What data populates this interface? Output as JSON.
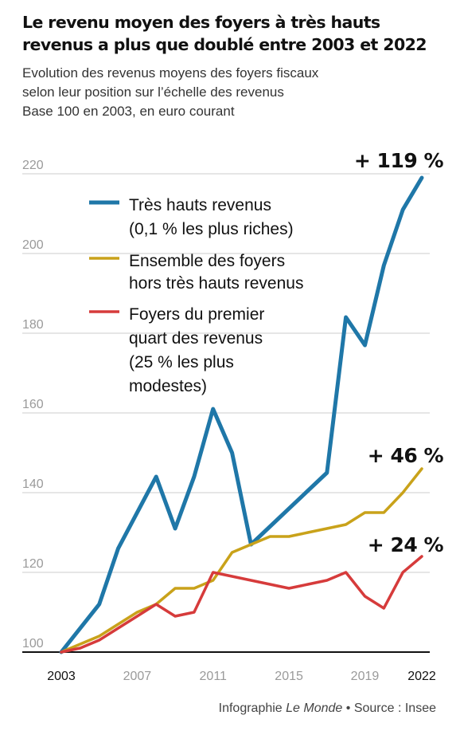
{
  "header": {
    "title": "Le revenu moyen des foyers à très hauts revenus a plus que doublé entre 2003 et 2022",
    "subtitle_lines": [
      "Evolution des revenus moyens des foyers fiscaux",
      "selon leur position sur l’échelle des revenus",
      "Base 100 en 2003, en euro courant"
    ]
  },
  "footer": {
    "prefix": "Infographie ",
    "publication": "Le Monde",
    "separator": " • ",
    "source": "Source : Insee"
  },
  "colors": {
    "very_high": "#1f77a8",
    "overall": "#c9a21a",
    "low": "#d63b3b",
    "grid": "#cccccc",
    "axis": "#111111"
  },
  "chart_data": {
    "type": "line",
    "ylim": [
      100,
      220
    ],
    "yticks": [
      100,
      120,
      140,
      160,
      180,
      200,
      220
    ],
    "xticks": [
      2003,
      2007,
      2011,
      2015,
      2019,
      2022
    ],
    "x_bold_ticks": [
      2003,
      2022
    ],
    "grid": true,
    "legend_position": "top-left",
    "series": [
      {
        "key": "very_high",
        "name_lines": [
          "Très hauts revenus",
          "(0,1 % les plus riches)"
        ],
        "end_label": "+ 119 %",
        "x": [
          2003,
          2005,
          2006,
          2008,
          2009,
          2010,
          2011,
          2012,
          2013,
          2017,
          2018,
          2019,
          2020,
          2021,
          2022
        ],
        "y": [
          100,
          112,
          126,
          144,
          131,
          144,
          161,
          150,
          127,
          145,
          184,
          177,
          197,
          211,
          219
        ]
      },
      {
        "key": "overall",
        "name_lines": [
          "Ensemble des foyers",
          "hors très hauts revenus"
        ],
        "end_label": "+ 46 %",
        "x": [
          2003,
          2004,
          2005,
          2006,
          2007,
          2008,
          2009,
          2010,
          2011,
          2012,
          2013,
          2014,
          2015,
          2016,
          2017,
          2018,
          2019,
          2020,
          2021,
          2022
        ],
        "y": [
          100,
          102,
          104,
          107,
          110,
          112,
          116,
          116,
          118,
          125,
          127,
          129,
          129,
          130,
          131,
          132,
          135,
          135,
          140,
          146
        ]
      },
      {
        "key": "low",
        "name_lines": [
          "Foyers du premier",
          "quart des revenus",
          "(25 % les plus",
          "modestes)"
        ],
        "end_label": "+ 24 %",
        "x": [
          2003,
          2004,
          2005,
          2006,
          2007,
          2008,
          2009,
          2010,
          2011,
          2012,
          2013,
          2014,
          2015,
          2016,
          2017,
          2018,
          2019,
          2020,
          2021,
          2022
        ],
        "y": [
          100,
          101,
          103,
          106,
          109,
          112,
          109,
          110,
          120,
          119,
          118,
          117,
          116,
          117,
          118,
          120,
          114,
          111,
          120,
          124
        ]
      }
    ]
  }
}
